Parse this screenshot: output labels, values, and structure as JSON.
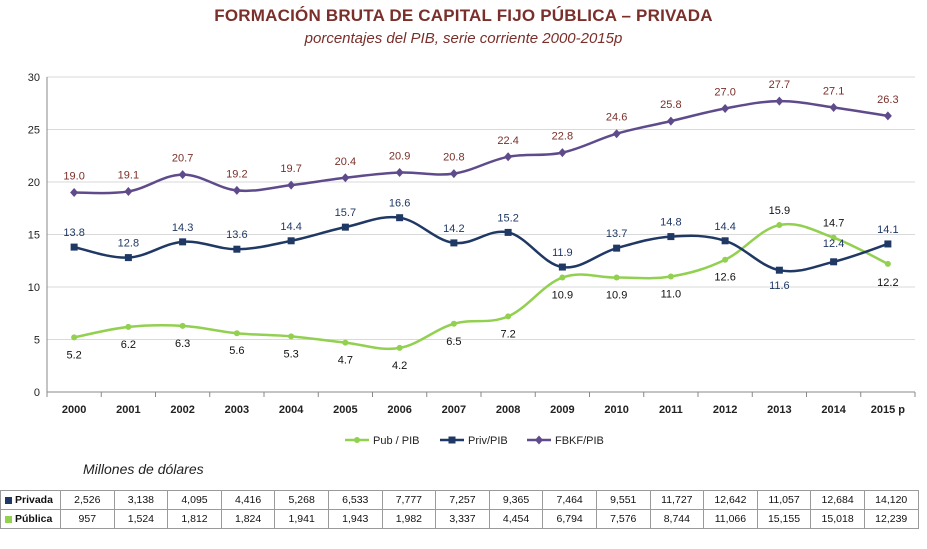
{
  "chart_data": {
    "type": "line",
    "title": "FORMACIÓN BRUTA DE CAPITAL FIJO PÚBLICA – PRIVADA",
    "subtitle": "porcentajes del PIB, serie corriente 2000-2015p",
    "categories": [
      "2000",
      "2001",
      "2002",
      "2003",
      "2004",
      "2005",
      "2006",
      "2007",
      "2008",
      "2009",
      "2010",
      "2011",
      "2012",
      "2013",
      "2014",
      "2015 p"
    ],
    "ylim": [
      0,
      30
    ],
    "yticks": [
      0,
      5,
      10,
      15,
      20,
      25,
      30
    ],
    "grid": true,
    "legend_position": "bottom",
    "series": [
      {
        "name": "Pub / PIB",
        "color": "#92d050",
        "label_color": "#111111",
        "marker": "circle",
        "values": [
          5.2,
          6.2,
          6.3,
          5.6,
          5.3,
          4.7,
          4.2,
          6.5,
          7.2,
          10.9,
          10.9,
          11.0,
          12.6,
          15.9,
          14.7,
          12.2
        ],
        "labels": [
          "5.2",
          "6.2",
          "6.3",
          "5.6",
          "5.3",
          "4.7",
          "4.2",
          "6.5",
          "7.2",
          "10.9",
          "10.9",
          "11.0",
          "12.6",
          "15.9",
          "14.7",
          "12.2"
        ]
      },
      {
        "name": "Priv/PIB",
        "color": "#1f3864",
        "label_color": "#1f3864",
        "marker": "square",
        "values": [
          13.8,
          12.8,
          14.3,
          13.6,
          14.4,
          15.7,
          16.6,
          14.2,
          15.2,
          11.9,
          13.7,
          14.8,
          14.4,
          11.6,
          12.4,
          14.1
        ],
        "labels": [
          "13.8",
          "12.8",
          "14.3",
          "13.6",
          "14.4",
          "15.7",
          "16.6",
          "14.2",
          "15.2",
          "11.9",
          "13.7",
          "14.8",
          "14.4",
          "11.6",
          "12.4",
          "14.1"
        ]
      },
      {
        "name": "FBKF/PIB",
        "color": "#5f4b8b",
        "label_color": "#7a2f2a",
        "marker": "diamond",
        "values": [
          19.0,
          19.1,
          20.7,
          19.2,
          19.7,
          20.4,
          20.9,
          20.8,
          22.4,
          22.8,
          24.6,
          25.8,
          27.0,
          27.7,
          27.1,
          26.3
        ],
        "labels": [
          "19.0",
          "19.1",
          "20.7",
          "19.2",
          "19.7",
          "20.4",
          "20.9",
          "20.8",
          "22.4",
          "22.8",
          "24.6",
          "25.8",
          "27.0",
          "27.7",
          "27.1",
          "26.3"
        ]
      }
    ]
  },
  "table": {
    "caption": "Millones de dólares",
    "rows": [
      {
        "label": "Privada",
        "color": "#1f3864",
        "values": [
          "2,526",
          "3,138",
          "4,095",
          "4,416",
          "5,268",
          "6,533",
          "7,777",
          "7,257",
          "9,365",
          "7,464",
          "9,551",
          "11,727",
          "12,642",
          "11,057",
          "12,684",
          "14,120"
        ]
      },
      {
        "label": "Pública",
        "color": "#92d050",
        "values": [
          "957",
          "1,524",
          "1,812",
          "1,824",
          "1,941",
          "1,943",
          "1,982",
          "3,337",
          "4,454",
          "6,794",
          "7,576",
          "8,744",
          "11,066",
          "15,155",
          "15,018",
          "12,239"
        ]
      }
    ]
  }
}
